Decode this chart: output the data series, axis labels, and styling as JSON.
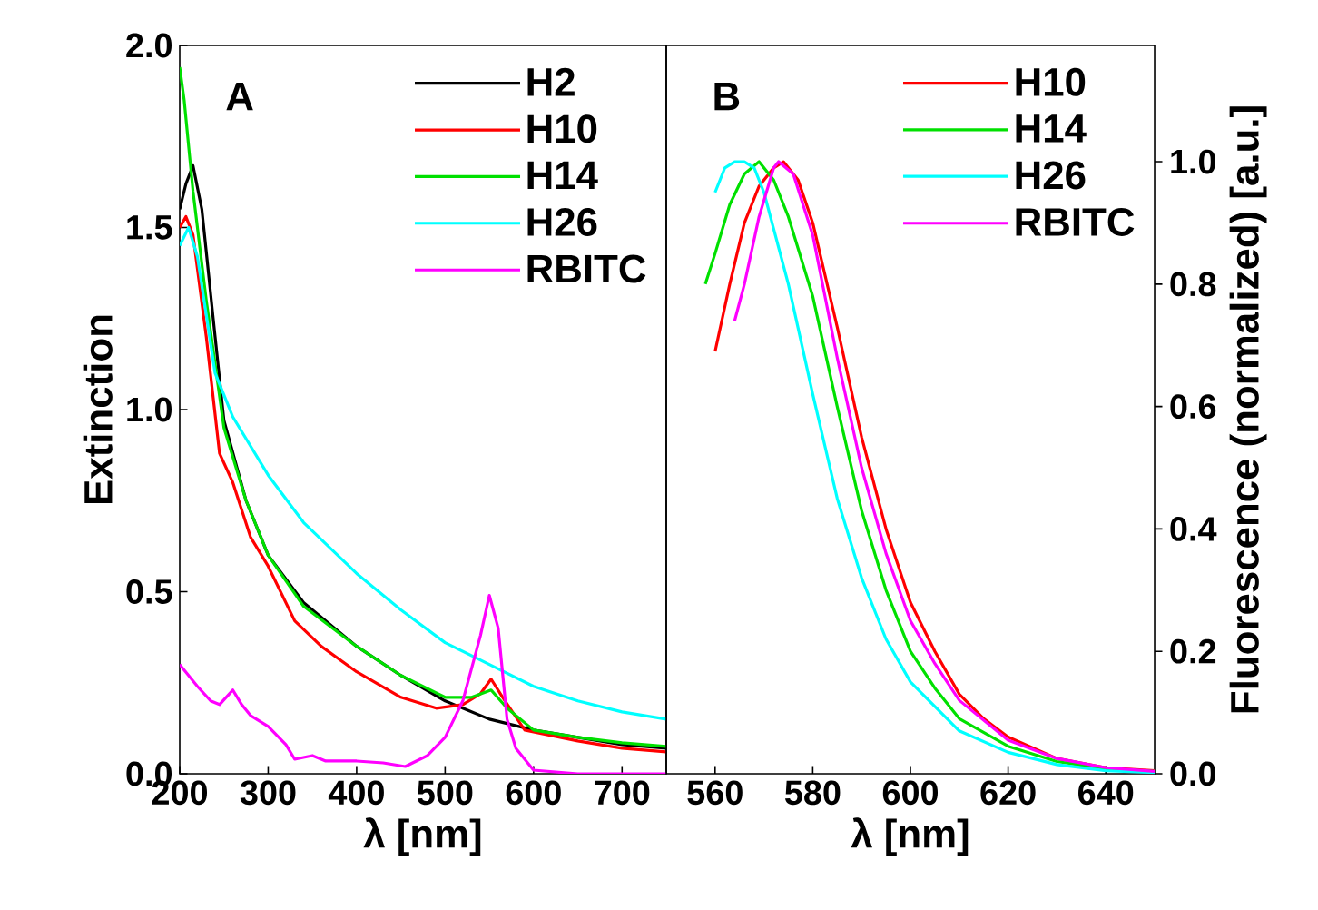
{
  "chart_data": [
    {
      "type": "line",
      "xlabel": "λ [nm]",
      "ylabel": "Extinction",
      "annotations": [
        "A"
      ],
      "xlim": [
        200,
        750
      ],
      "xticks": [
        200,
        300,
        400,
        500,
        600,
        700
      ],
      "ylim": [
        0,
        2.0
      ],
      "yticks": [
        {
          "value": 0,
          "label": "0.0"
        },
        0.5,
        {
          "value": 1,
          "label": "1.0"
        },
        1.5,
        {
          "value": 2,
          "label": "2.0"
        }
      ],
      "legend": "top right",
      "series": [
        {
          "name": "H2",
          "color": "#000000",
          "x": [
            200,
            207,
            215,
            225,
            240,
            250,
            275,
            300,
            340,
            400,
            450,
            500,
            550,
            600,
            650,
            700,
            750
          ],
          "values": [
            1.55,
            1.62,
            1.67,
            1.55,
            1.2,
            0.97,
            0.75,
            0.6,
            0.47,
            0.35,
            0.27,
            0.2,
            0.15,
            0.12,
            0.1,
            0.08,
            0.07
          ]
        },
        {
          "name": "H10",
          "color": "#ff0000",
          "x": [
            200,
            207,
            215,
            230,
            245,
            260,
            280,
            300,
            330,
            360,
            400,
            450,
            490,
            520,
            540,
            552,
            565,
            590,
            650,
            700,
            750
          ],
          "values": [
            1.5,
            1.53,
            1.48,
            1.2,
            0.88,
            0.8,
            0.65,
            0.57,
            0.42,
            0.35,
            0.28,
            0.21,
            0.18,
            0.19,
            0.22,
            0.26,
            0.21,
            0.12,
            0.09,
            0.07,
            0.06
          ]
        },
        {
          "name": "H14",
          "color": "#00e000",
          "x": [
            200,
            205,
            215,
            230,
            250,
            275,
            300,
            340,
            400,
            450,
            500,
            530,
            552,
            570,
            600,
            650,
            700,
            750
          ],
          "values": [
            1.94,
            1.85,
            1.6,
            1.3,
            0.95,
            0.75,
            0.6,
            0.46,
            0.35,
            0.27,
            0.21,
            0.21,
            0.23,
            0.18,
            0.12,
            0.1,
            0.085,
            0.075
          ]
        },
        {
          "name": "H26",
          "color": "#00ffff",
          "x": [
            200,
            210,
            220,
            240,
            260,
            300,
            340,
            400,
            450,
            500,
            550,
            600,
            650,
            700,
            750
          ],
          "values": [
            1.45,
            1.5,
            1.42,
            1.1,
            0.98,
            0.82,
            0.69,
            0.55,
            0.45,
            0.36,
            0.3,
            0.24,
            0.2,
            0.17,
            0.15
          ]
        },
        {
          "name": "RBITC",
          "color": "#ff00ff",
          "x": [
            200,
            220,
            235,
            245,
            260,
            270,
            280,
            300,
            320,
            330,
            350,
            365,
            400,
            430,
            455,
            480,
            500,
            520,
            540,
            550,
            560,
            570,
            580,
            600,
            650,
            750
          ],
          "values": [
            0.3,
            0.24,
            0.2,
            0.19,
            0.23,
            0.19,
            0.16,
            0.13,
            0.08,
            0.04,
            0.05,
            0.035,
            0.035,
            0.03,
            0.02,
            0.05,
            0.1,
            0.2,
            0.38,
            0.49,
            0.4,
            0.15,
            0.07,
            0.01,
            0.0,
            0.0
          ]
        }
      ]
    },
    {
      "type": "line",
      "xlabel": "λ [nm]",
      "y2label": "Fluorescence (normalized) [a.u.]",
      "annotations": [
        "B"
      ],
      "xlim": [
        550,
        650
      ],
      "xticks": [
        560,
        580,
        600,
        620,
        640
      ],
      "y2lim": [
        0,
        1.19
      ],
      "y2ticks": [
        {
          "value": 0,
          "label": "0.0"
        },
        0.2,
        0.4,
        0.6,
        0.8,
        {
          "value": 1,
          "label": "1.0"
        }
      ],
      "legend": "top right",
      "series": [
        {
          "name": "H10",
          "color": "#ff0000",
          "axis": "y2",
          "x": [
            560,
            563,
            566,
            569,
            572,
            574,
            577,
            580,
            585,
            590,
            595,
            600,
            605,
            610,
            615,
            620,
            630,
            640,
            650
          ],
          "values": [
            0.69,
            0.8,
            0.9,
            0.96,
            0.99,
            1.0,
            0.97,
            0.9,
            0.73,
            0.55,
            0.4,
            0.28,
            0.2,
            0.13,
            0.09,
            0.06,
            0.025,
            0.01,
            0.005
          ]
        },
        {
          "name": "H14",
          "color": "#00e000",
          "axis": "y2",
          "x": [
            558,
            560,
            563,
            566,
            569,
            572,
            575,
            580,
            585,
            590,
            595,
            600,
            605,
            610,
            620,
            630,
            640,
            650
          ],
          "values": [
            0.8,
            0.85,
            0.93,
            0.98,
            1.0,
            0.97,
            0.91,
            0.78,
            0.6,
            0.43,
            0.3,
            0.2,
            0.14,
            0.09,
            0.045,
            0.02,
            0.008,
            0.004
          ]
        },
        {
          "name": "H26",
          "color": "#00ffff",
          "axis": "y2",
          "x": [
            560,
            562,
            564,
            566,
            568,
            570,
            575,
            580,
            585,
            590,
            595,
            600,
            605,
            610,
            620,
            630,
            640,
            650
          ],
          "values": [
            0.95,
            0.99,
            1.0,
            1.0,
            0.99,
            0.95,
            0.8,
            0.62,
            0.45,
            0.32,
            0.22,
            0.15,
            0.11,
            0.07,
            0.035,
            0.015,
            0.005,
            0.002
          ]
        },
        {
          "name": "RBITC",
          "color": "#ff00ff",
          "axis": "y2",
          "x": [
            564,
            566,
            569,
            572,
            573,
            576,
            580,
            585,
            590,
            595,
            600,
            605,
            610,
            620,
            630,
            640,
            650
          ],
          "values": [
            0.74,
            0.8,
            0.91,
            0.99,
            1.0,
            0.98,
            0.88,
            0.68,
            0.5,
            0.36,
            0.25,
            0.18,
            0.12,
            0.055,
            0.025,
            0.01,
            0.004
          ]
        }
      ]
    }
  ]
}
